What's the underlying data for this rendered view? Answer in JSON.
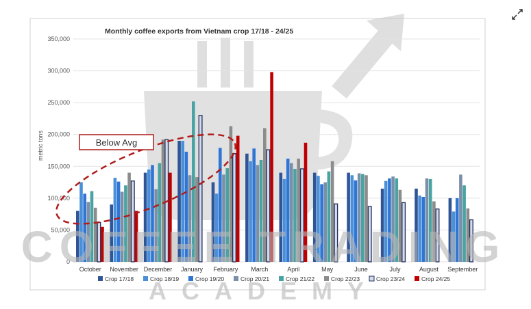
{
  "expand_icon": "expand-diagonal-icon",
  "watermark": {
    "line1": "COFFEE TRADING",
    "line2": "ACADEMY",
    "color": "#b8b8b8"
  },
  "chart_data": {
    "type": "bar",
    "title": "Monthly coffee exports from Vietnam crop 17/18 - 24/25",
    "xlabel": "",
    "ylabel": "metric tons",
    "ylim": [
      0,
      350000
    ],
    "yticks": [
      "0",
      "50,000",
      "100,000",
      "150,000",
      "200,000",
      "250,000",
      "300,000",
      "350,000"
    ],
    "grid": true,
    "legend_position": "bottom",
    "categories": [
      "October",
      "November",
      "December",
      "January",
      "February",
      "March",
      "April",
      "May",
      "June",
      "July",
      "August",
      "September"
    ],
    "series": [
      {
        "name": "Crop 17/18",
        "color": "#2f5597",
        "values": [
          80000,
          90000,
          140000,
          190000,
          125000,
          170000,
          140000,
          140000,
          140000,
          115000,
          115000,
          100000
        ]
      },
      {
        "name": "Crop 18/19",
        "color": "#4a90d9",
        "values": [
          125000,
          132000,
          145000,
          190000,
          107000,
          158000,
          130000,
          135000,
          136000,
          127000,
          104000,
          79000
        ]
      },
      {
        "name": "Crop 19/20",
        "color": "#2e75d6",
        "values": [
          107000,
          126000,
          152000,
          173000,
          179000,
          178000,
          162000,
          122000,
          128000,
          131000,
          102000,
          100000
        ]
      },
      {
        "name": "Crop 20/21",
        "color": "#7a8fa8",
        "values": [
          94000,
          110000,
          114000,
          136000,
          137000,
          152000,
          155000,
          125000,
          139000,
          134000,
          131000,
          137000
        ]
      },
      {
        "name": "Crop 21/22",
        "color": "#4aa3a3",
        "values": [
          111000,
          120000,
          155000,
          252000,
          147000,
          160000,
          146000,
          142000,
          138000,
          131000,
          130000,
          120000
        ]
      },
      {
        "name": "Crop 22/23",
        "color": "#8c8c8c",
        "values": [
          85000,
          140000,
          192000,
          133000,
          213000,
          210000,
          162000,
          158000,
          136000,
          113000,
          95000,
          84000
        ]
      },
      {
        "name": "Crop 23/24",
        "color": "#d6dcec",
        "outline": "#1f2d5a",
        "values": [
          62000,
          127000,
          192000,
          230000,
          170000,
          176000,
          146000,
          91000,
          87000,
          93000,
          83000,
          66000
        ]
      },
      {
        "name": "Crop 24/25",
        "color": "#c00000",
        "values": [
          55000,
          80000,
          140000,
          null,
          198000,
          298000,
          187000,
          null,
          null,
          null,
          null,
          null
        ]
      }
    ],
    "annotations": [
      {
        "text": "Below Avg",
        "color": "#b01c1c"
      }
    ]
  }
}
